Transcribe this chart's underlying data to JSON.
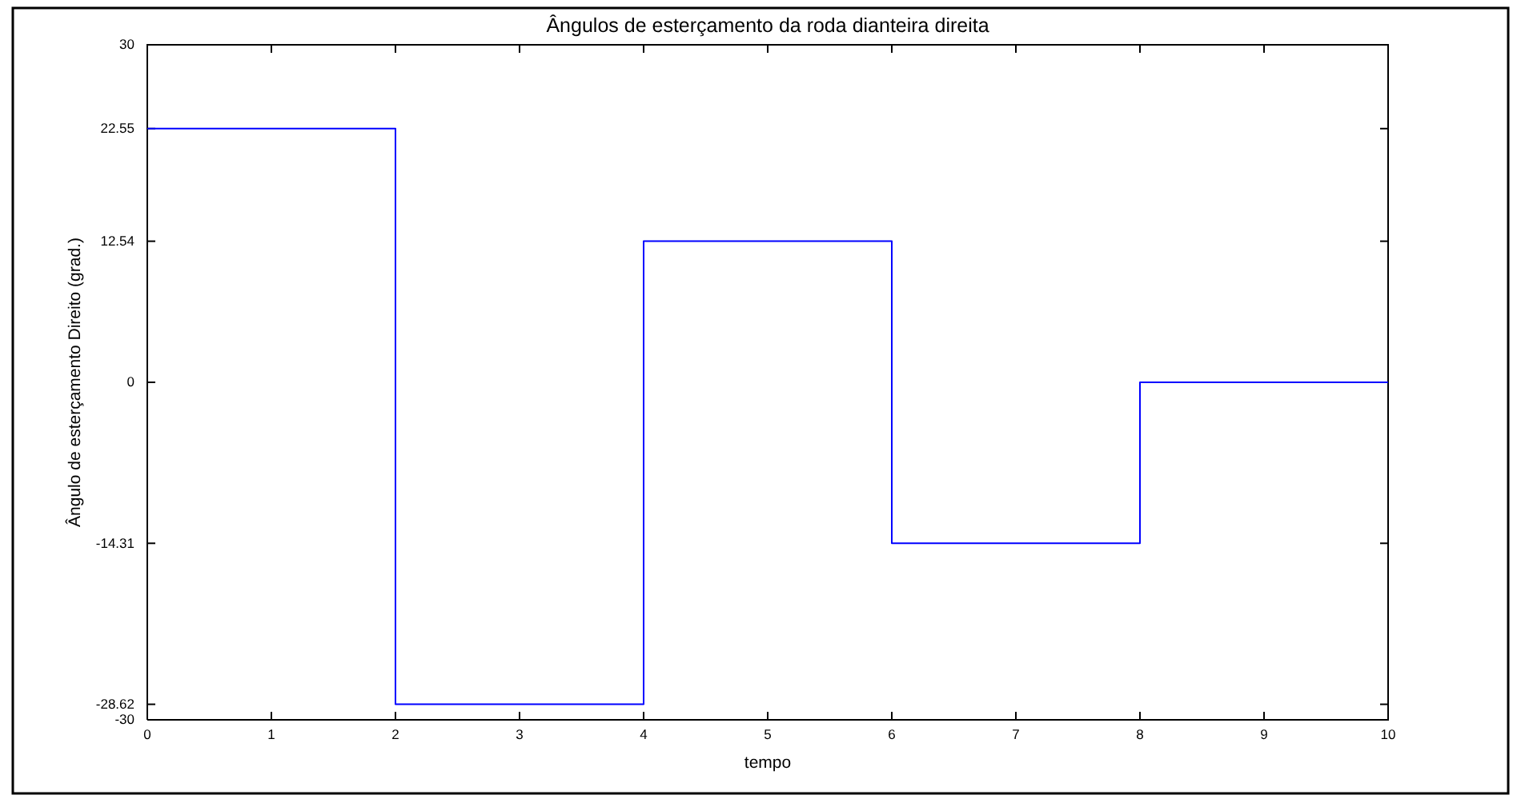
{
  "chart_data": {
    "type": "step",
    "title": "Ângulos de esterçamento da roda dianteira direita",
    "xlabel": "tempo",
    "ylabel": "Ângulo de esterçamento Direito (grad.)",
    "x": [
      0,
      2,
      4,
      6,
      8,
      10
    ],
    "series": [
      {
        "color": "#0000ff",
        "values": [
          22.55,
          -28.62,
          12.54,
          -14.31,
          0,
          0
        ]
      }
    ],
    "xlim": [
      0,
      10
    ],
    "xticks": [
      0,
      1,
      2,
      3,
      4,
      5,
      6,
      7,
      8,
      9,
      10
    ],
    "ylim": [
      -30,
      30
    ],
    "yticks": [
      -30,
      -28.62,
      -14.31,
      0,
      12.54,
      22.55,
      30
    ],
    "grid": false
  }
}
